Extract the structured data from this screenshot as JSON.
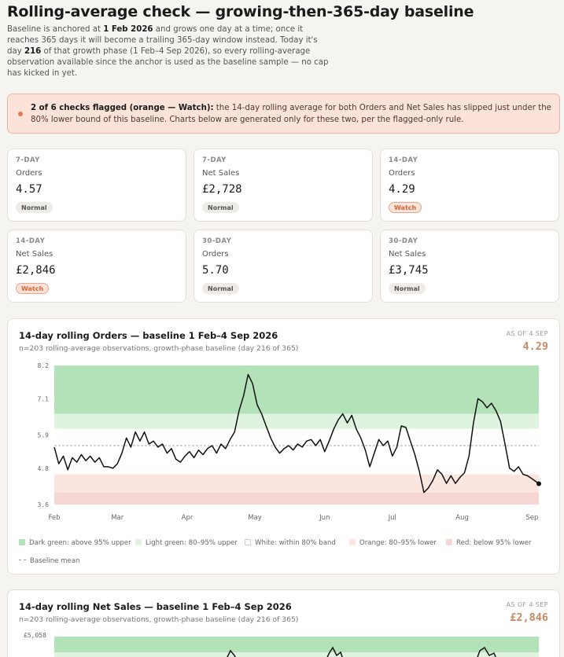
{
  "page": {
    "title": "Rolling-average check — growing-then-365-day baseline",
    "intro": {
      "t1": "Baseline is anchored at ",
      "b1": "1 Feb 2026",
      "t2": " and grows one day at a time; once it reaches 365 days it will become a trailing 365-day window instead. Today it's day ",
      "b2": "216",
      "t3": " of that growth phase (1 Feb–4 Sep 2026), so every rolling-average observation available since the anchor is used as the baseline sample — no cap has kicked in yet."
    }
  },
  "alert": {
    "bold": "2 of 6 checks flagged (orange — Watch):",
    "text": " the 14-day rolling average for both Orders and Net Sales has slipped just under the 80% lower bound of this baseline. Charts below are generated only for these two, per the flagged-only rule.",
    "color": "#e07a52"
  },
  "cards": [
    {
      "period": "7-DAY",
      "metric": "Orders",
      "value": "4.57",
      "status": "Normal"
    },
    {
      "period": "7-DAY",
      "metric": "Net Sales",
      "value": "£2,728",
      "status": "Normal"
    },
    {
      "period": "14-DAY",
      "metric": "Orders",
      "value": "4.29",
      "status": "Watch"
    },
    {
      "period": "14-DAY",
      "metric": "Net Sales",
      "value": "£2,846",
      "status": "Watch"
    },
    {
      "period": "30-DAY",
      "metric": "Orders",
      "value": "5.70",
      "status": "Normal"
    },
    {
      "period": "30-DAY",
      "metric": "Net Sales",
      "value": "£3,745",
      "status": "Normal"
    }
  ],
  "colors": {
    "dark_green": "#b4e2b8",
    "light_green": "#dff3e0",
    "orange": "#fbe6df",
    "red": "#f5d6d2",
    "line": "#111111",
    "mean": "#aaaaaa",
    "watch_value": "#c98a63"
  },
  "chart1": {
    "title": "14-day rolling Orders — baseline 1 Feb–4 Sep 2026",
    "subtitle": "n=203 rolling-average observations, growth-phase baseline (day 216 of 365)",
    "as_of": "AS OF 4 SEP",
    "current_value": "4.29",
    "legend": {
      "dark_green": "Dark green: above 95% upper",
      "light_green": "Light green: 80–95% upper",
      "white": "White: within 80% band",
      "orange": "Orange: 80–95% lower",
      "red": "Red: below 95% lower",
      "mean": "Baseline mean"
    }
  },
  "chart2": {
    "title": "14-day rolling Net Sales — baseline 1 Feb–4 Sep 2026",
    "subtitle": "n=203 rolling-average observations, growth-phase baseline (day 216 of 365)",
    "as_of": "AS OF 4 SEP",
    "current_value": "£2,846",
    "ytick_top": "£5,058"
  },
  "chart_data": [
    {
      "type": "line",
      "title": "14-day rolling Orders — baseline 1 Feb–4 Sep 2026",
      "xlabel": "",
      "ylabel": "",
      "xlim": [
        "2026-02-01",
        "2026-09-04"
      ],
      "ylim": [
        3.6,
        8.2
      ],
      "yticks": [
        "3.6",
        "4.8",
        "5.9",
        "7.1",
        "8.2"
      ],
      "xticks": [
        {
          "date": "2026-02-01",
          "label": "Feb"
        },
        {
          "date": "2026-03-01",
          "label": "Mar"
        },
        {
          "date": "2026-04-01",
          "label": "Apr"
        },
        {
          "date": "2026-05-01",
          "label": "May"
        },
        {
          "date": "2026-06-01",
          "label": "Jun"
        },
        {
          "date": "2026-07-01",
          "label": "Jul"
        },
        {
          "date": "2026-08-01",
          "label": "Aug"
        },
        {
          "date": "2026-09-01",
          "label": "Sep"
        }
      ],
      "bands": {
        "upper_95": 6.6,
        "upper_80": 6.1,
        "mean": 5.55,
        "lower_80": 4.6,
        "lower_95": 4.0
      },
      "grid": true,
      "legend": "bottom",
      "series": [
        {
          "points": [
            [
              "2026-02-01",
              5.5
            ],
            [
              "2026-02-03",
              4.95
            ],
            [
              "2026-02-05",
              5.2
            ],
            [
              "2026-02-07",
              4.75
            ],
            [
              "2026-02-09",
              5.15
            ],
            [
              "2026-02-11",
              5.0
            ],
            [
              "2026-02-13",
              5.25
            ],
            [
              "2026-02-15",
              5.05
            ],
            [
              "2026-02-17",
              5.2
            ],
            [
              "2026-02-19",
              5.0
            ],
            [
              "2026-02-21",
              5.15
            ],
            [
              "2026-02-23",
              4.85
            ],
            [
              "2026-02-25",
              4.85
            ],
            [
              "2026-02-27",
              4.8
            ],
            [
              "2026-03-01",
              4.95
            ],
            [
              "2026-03-03",
              5.3
            ],
            [
              "2026-03-05",
              5.8
            ],
            [
              "2026-03-07",
              5.5
            ],
            [
              "2026-03-09",
              6.0
            ],
            [
              "2026-03-11",
              5.7
            ],
            [
              "2026-03-13",
              6.0
            ],
            [
              "2026-03-15",
              5.6
            ],
            [
              "2026-03-17",
              5.7
            ],
            [
              "2026-03-19",
              5.5
            ],
            [
              "2026-03-21",
              5.6
            ],
            [
              "2026-03-23",
              5.3
            ],
            [
              "2026-03-25",
              5.45
            ],
            [
              "2026-03-27",
              5.1
            ],
            [
              "2026-03-29",
              5.0
            ],
            [
              "2026-03-31",
              5.2
            ],
            [
              "2026-04-02",
              5.35
            ],
            [
              "2026-04-04",
              5.15
            ],
            [
              "2026-04-06",
              5.4
            ],
            [
              "2026-04-08",
              5.25
            ],
            [
              "2026-04-10",
              5.45
            ],
            [
              "2026-04-12",
              5.55
            ],
            [
              "2026-04-14",
              5.3
            ],
            [
              "2026-04-16",
              5.6
            ],
            [
              "2026-04-18",
              5.45
            ],
            [
              "2026-04-20",
              5.75
            ],
            [
              "2026-04-22",
              6.0
            ],
            [
              "2026-04-24",
              6.7
            ],
            [
              "2026-04-26",
              7.2
            ],
            [
              "2026-04-28",
              7.9
            ],
            [
              "2026-04-30",
              7.6
            ],
            [
              "2026-05-02",
              6.9
            ],
            [
              "2026-05-04",
              6.6
            ],
            [
              "2026-05-06",
              6.2
            ],
            [
              "2026-05-08",
              5.8
            ],
            [
              "2026-05-10",
              5.5
            ],
            [
              "2026-05-12",
              5.3
            ],
            [
              "2026-05-14",
              5.45
            ],
            [
              "2026-05-16",
              5.55
            ],
            [
              "2026-05-18",
              5.4
            ],
            [
              "2026-05-20",
              5.6
            ],
            [
              "2026-05-22",
              5.5
            ],
            [
              "2026-05-24",
              5.7
            ],
            [
              "2026-05-26",
              5.75
            ],
            [
              "2026-05-28",
              5.55
            ],
            [
              "2026-05-30",
              5.75
            ],
            [
              "2026-06-01",
              5.35
            ],
            [
              "2026-06-03",
              5.7
            ],
            [
              "2026-06-05",
              6.1
            ],
            [
              "2026-06-07",
              6.4
            ],
            [
              "2026-06-09",
              6.6
            ],
            [
              "2026-06-11",
              6.3
            ],
            [
              "2026-06-13",
              6.55
            ],
            [
              "2026-06-15",
              6.1
            ],
            [
              "2026-06-17",
              5.8
            ],
            [
              "2026-06-19",
              5.4
            ],
            [
              "2026-06-21",
              4.85
            ],
            [
              "2026-06-23",
              5.3
            ],
            [
              "2026-06-25",
              5.75
            ],
            [
              "2026-06-27",
              5.55
            ],
            [
              "2026-06-29",
              5.7
            ],
            [
              "2026-07-01",
              5.2
            ],
            [
              "2026-07-03",
              5.5
            ],
            [
              "2026-07-05",
              6.2
            ],
            [
              "2026-07-07",
              6.15
            ],
            [
              "2026-07-09",
              5.7
            ],
            [
              "2026-07-11",
              5.25
            ],
            [
              "2026-07-13",
              4.7
            ],
            [
              "2026-07-15",
              4.0
            ],
            [
              "2026-07-17",
              4.15
            ],
            [
              "2026-07-19",
              4.4
            ],
            [
              "2026-07-21",
              4.75
            ],
            [
              "2026-07-23",
              4.6
            ],
            [
              "2026-07-25",
              4.3
            ],
            [
              "2026-07-27",
              4.55
            ],
            [
              "2026-07-29",
              4.3
            ],
            [
              "2026-07-31",
              4.5
            ],
            [
              "2026-08-02",
              4.65
            ],
            [
              "2026-08-04",
              5.2
            ],
            [
              "2026-08-06",
              6.3
            ],
            [
              "2026-08-08",
              7.1
            ],
            [
              "2026-08-10",
              7.0
            ],
            [
              "2026-08-12",
              6.8
            ],
            [
              "2026-08-14",
              6.95
            ],
            [
              "2026-08-16",
              6.7
            ],
            [
              "2026-08-18",
              6.35
            ],
            [
              "2026-08-20",
              5.6
            ],
            [
              "2026-08-22",
              4.8
            ],
            [
              "2026-08-24",
              4.7
            ],
            [
              "2026-08-26",
              4.85
            ],
            [
              "2026-08-28",
              4.6
            ],
            [
              "2026-08-30",
              4.55
            ],
            [
              "2026-09-01",
              4.45
            ],
            [
              "2026-09-04",
              4.29
            ]
          ]
        }
      ]
    },
    {
      "type": "line",
      "title": "14-day rolling Net Sales — baseline 1 Feb–4 Sep 2026",
      "xlabel": "",
      "ylabel": "",
      "xlim": [
        "2026-02-01",
        "2026-09-04"
      ],
      "yticks": [
        "£5,058"
      ],
      "grid": true
    }
  ]
}
